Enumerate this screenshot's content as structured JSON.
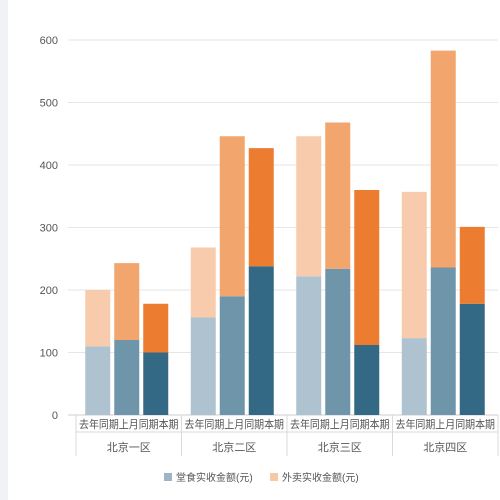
{
  "chart_data": {
    "type": "bar",
    "stacked": true,
    "title": "",
    "xlabel": "",
    "ylabel": "",
    "ylim": [
      0,
      600
    ],
    "yticks": [
      0,
      100,
      200,
      300,
      400,
      500,
      600
    ],
    "grid": true,
    "legend_position": "bottom",
    "groups": [
      "北京一区",
      "北京二区",
      "北京三区",
      "北京四区"
    ],
    "periods": [
      "去年同期",
      "上月同期",
      "本期"
    ],
    "period_labels": [
      "去年同期",
      "上月同期",
      "本期"
    ],
    "series": [
      {
        "name": "堂食实收金额(元)",
        "values": [
          [
            110,
            120,
            100
          ],
          [
            156,
            190,
            238
          ],
          [
            222,
            234,
            112
          ],
          [
            123,
            236,
            178
          ]
        ]
      },
      {
        "name": "外卖实收金额(元)",
        "values": [
          [
            90,
            123,
            78
          ],
          [
            112,
            256,
            189
          ],
          [
            224,
            234,
            248
          ],
          [
            234,
            347,
            123
          ]
        ]
      }
    ],
    "colors": {
      "dine_in": [
        "#aec2cf",
        "#6f95aa",
        "#336985"
      ],
      "takeout": [
        "#f7cbab",
        "#f2a56d",
        "#ec7c2f"
      ],
      "legend_dine_in": "#9fb4c6",
      "legend_takeout": "#f7c7a6"
    }
  }
}
